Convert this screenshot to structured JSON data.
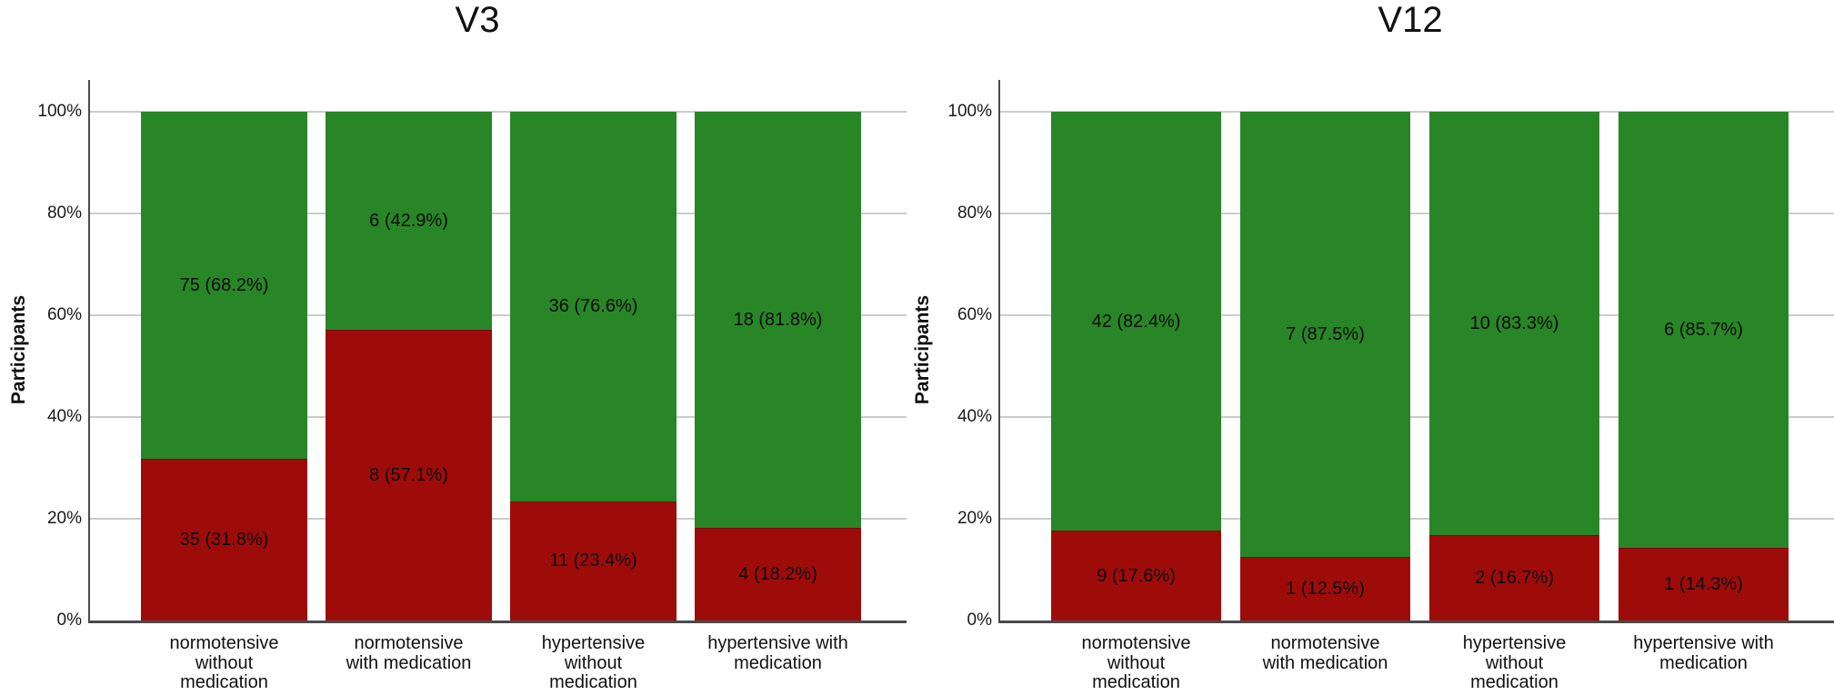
{
  "figure": {
    "background": "#ffffff",
    "panel_titles": [
      "V3",
      "V12"
    ]
  },
  "chart_data": [
    {
      "type": "bar",
      "stacked": true,
      "orientation": "vertical",
      "title": "V3",
      "ylabel": "Participants",
      "xlabel": "",
      "ylim": [
        0,
        100
      ],
      "ytick_values": [
        0,
        20,
        40,
        60,
        80,
        100
      ],
      "yticks": [
        "0%",
        "20%",
        "40%",
        "60%",
        "80%",
        "100%"
      ],
      "grid": "horizontal",
      "legend": "none",
      "categories": [
        "normotensive\nwithout\nmedication",
        "normotensive\nwith medication",
        "hypertensive\nwithout\nmedication",
        "hypertensive with\nmedication"
      ],
      "series": [
        {
          "name": "red-bottom-segment",
          "color": "#9e0c0a",
          "counts": [
            35,
            8,
            11,
            4
          ],
          "percents": [
            31.8,
            57.1,
            23.4,
            18.2
          ],
          "labels": [
            "35 (31.8%)",
            "8 (57.1%)",
            "11 (23.4%)",
            "4 (18.2%)"
          ]
        },
        {
          "name": "green-top-segment",
          "color": "#288626",
          "counts": [
            75,
            6,
            36,
            18
          ],
          "percents": [
            68.2,
            42.9,
            76.6,
            81.8
          ],
          "labels": [
            "75 (68.2%)",
            "6 (42.9%)",
            "36 (76.6%)",
            "18 (81.8%)"
          ]
        }
      ]
    },
    {
      "type": "bar",
      "stacked": true,
      "orientation": "vertical",
      "title": "V12",
      "ylabel": "Participants",
      "xlabel": "",
      "ylim": [
        0,
        100
      ],
      "ytick_values": [
        0,
        20,
        40,
        60,
        80,
        100
      ],
      "yticks": [
        "0%",
        "20%",
        "40%",
        "60%",
        "80%",
        "100%"
      ],
      "grid": "horizontal",
      "legend": "none",
      "categories": [
        "normotensive\nwithout\nmedication",
        "normotensive\nwith medication",
        "hypertensive\nwithout\nmedication",
        "hypertensive with\nmedication"
      ],
      "series": [
        {
          "name": "red-bottom-segment",
          "color": "#9e0c0a",
          "counts": [
            9,
            1,
            2,
            1
          ],
          "percents": [
            17.6,
            12.5,
            16.7,
            14.3
          ],
          "labels": [
            "9 (17.6%)",
            "1 (12.5%)",
            "2 (16.7%)",
            "1 (14.3%)"
          ]
        },
        {
          "name": "green-top-segment",
          "color": "#288626",
          "counts": [
            42,
            7,
            10,
            6
          ],
          "percents": [
            82.4,
            87.5,
            83.3,
            85.7
          ],
          "labels": [
            "42 (82.4%)",
            "7 (87.5%)",
            "10 (83.3%)",
            "6 (85.7%)"
          ]
        }
      ]
    }
  ]
}
